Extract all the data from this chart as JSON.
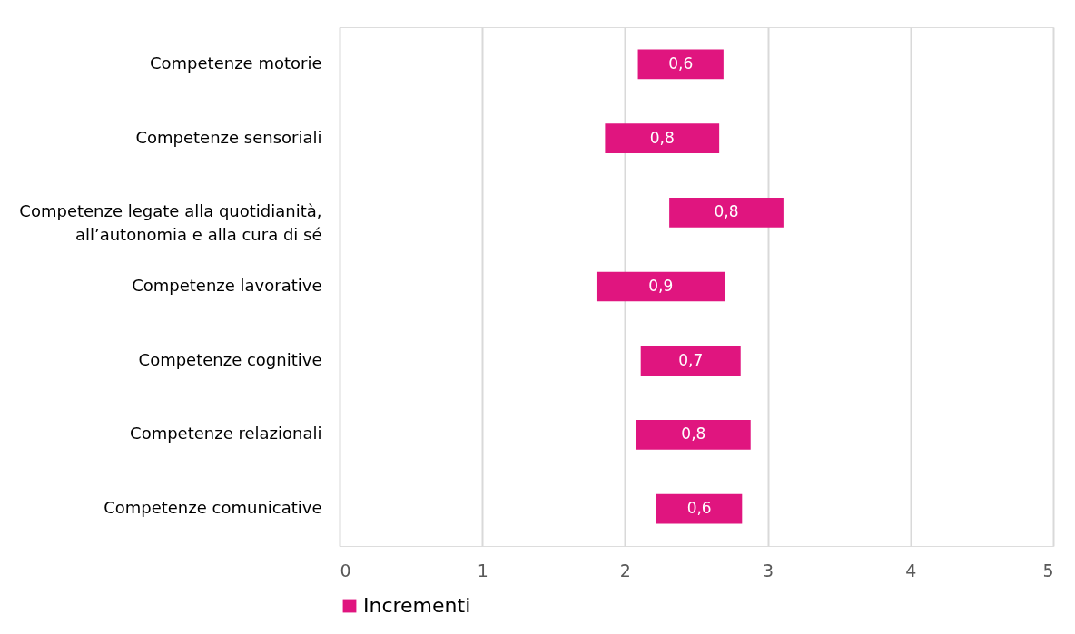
{
  "chart_data": {
    "type": "bar",
    "orientation": "horizontal",
    "categories": [
      "Competenze motorie",
      "Competenze sensoriali",
      "Competenze legate alla quotidianità,\nall’autonomia e alla cura di sé",
      "Competenze lavorative",
      "Competenze cognitive",
      "Competenze relazionali",
      "Competenze comunicative"
    ],
    "series": [
      {
        "name": "Incrementi",
        "color": "#e0157f",
        "values": [
          0.6,
          0.8,
          0.8,
          0.9,
          0.7,
          0.8,
          0.6
        ],
        "base": [
          2.09,
          1.86,
          2.31,
          1.8,
          2.11,
          2.08,
          2.22
        ],
        "value_labels": [
          "0,6",
          "0,8",
          "0,8",
          "0,9",
          "0,7",
          "0,8",
          "0,6"
        ]
      }
    ],
    "xlim": [
      0,
      5
    ],
    "xticks": [
      0,
      1,
      2,
      3,
      4,
      5
    ],
    "grid": "x",
    "legend": "bottom"
  }
}
